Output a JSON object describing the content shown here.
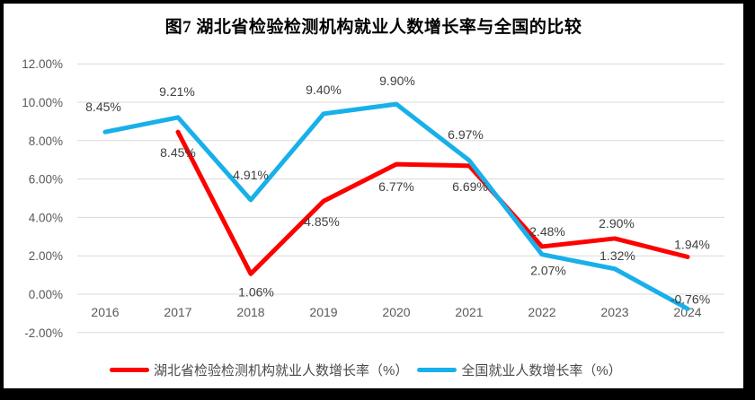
{
  "figure": {
    "title": "图7 湖北省检验检测机构就业人数增长率与全国的比较"
  },
  "chart_data": {
    "type": "line",
    "title": "图7 湖北省检验检测机构就业人数增长率与全国的比较",
    "categories": [
      "2016",
      "2017",
      "2018",
      "2019",
      "2020",
      "2021",
      "2022",
      "2023",
      "2024"
    ],
    "series": [
      {
        "name": "湖北省检验检测机构就业人数增长率（%）",
        "color": "#fe0000",
        "values": [
          null,
          8.45,
          1.06,
          4.85,
          6.77,
          6.69,
          2.48,
          2.9,
          1.94
        ],
        "labels": [
          null,
          "8.45%",
          "1.06%",
          "4.85%",
          "6.77%",
          "6.69%",
          "2.48%",
          "2.90%",
          "1.94%"
        ]
      },
      {
        "name": "全国就业人数增长率（%）",
        "color": "#18b0ea",
        "values": [
          8.45,
          9.21,
          4.91,
          9.4,
          9.9,
          6.97,
          2.07,
          1.32,
          -0.76
        ],
        "labels": [
          "8.45%",
          "9.21%",
          "4.91%",
          "9.40%",
          "9.90%",
          "6.97%",
          "2.07%",
          "1.32%",
          "-0.76%"
        ]
      }
    ],
    "y_ticks": [
      "12.00%",
      "10.00%",
      "8.00%",
      "6.00%",
      "4.00%",
      "2.00%",
      "0.00%",
      "-2.00%"
    ],
    "ylim": [
      -2,
      12
    ],
    "xlabel": "",
    "ylabel": "",
    "grid": true,
    "legend_position": "bottom"
  },
  "colors": {
    "hubei_red": "#fe0000",
    "national_blue": "#18b0ea",
    "gridline": "#d9d9d9",
    "axis_text": "#595959",
    "data_label_text": "#3f3f3f",
    "frame_border": "#000000",
    "background": "#ffffff"
  }
}
